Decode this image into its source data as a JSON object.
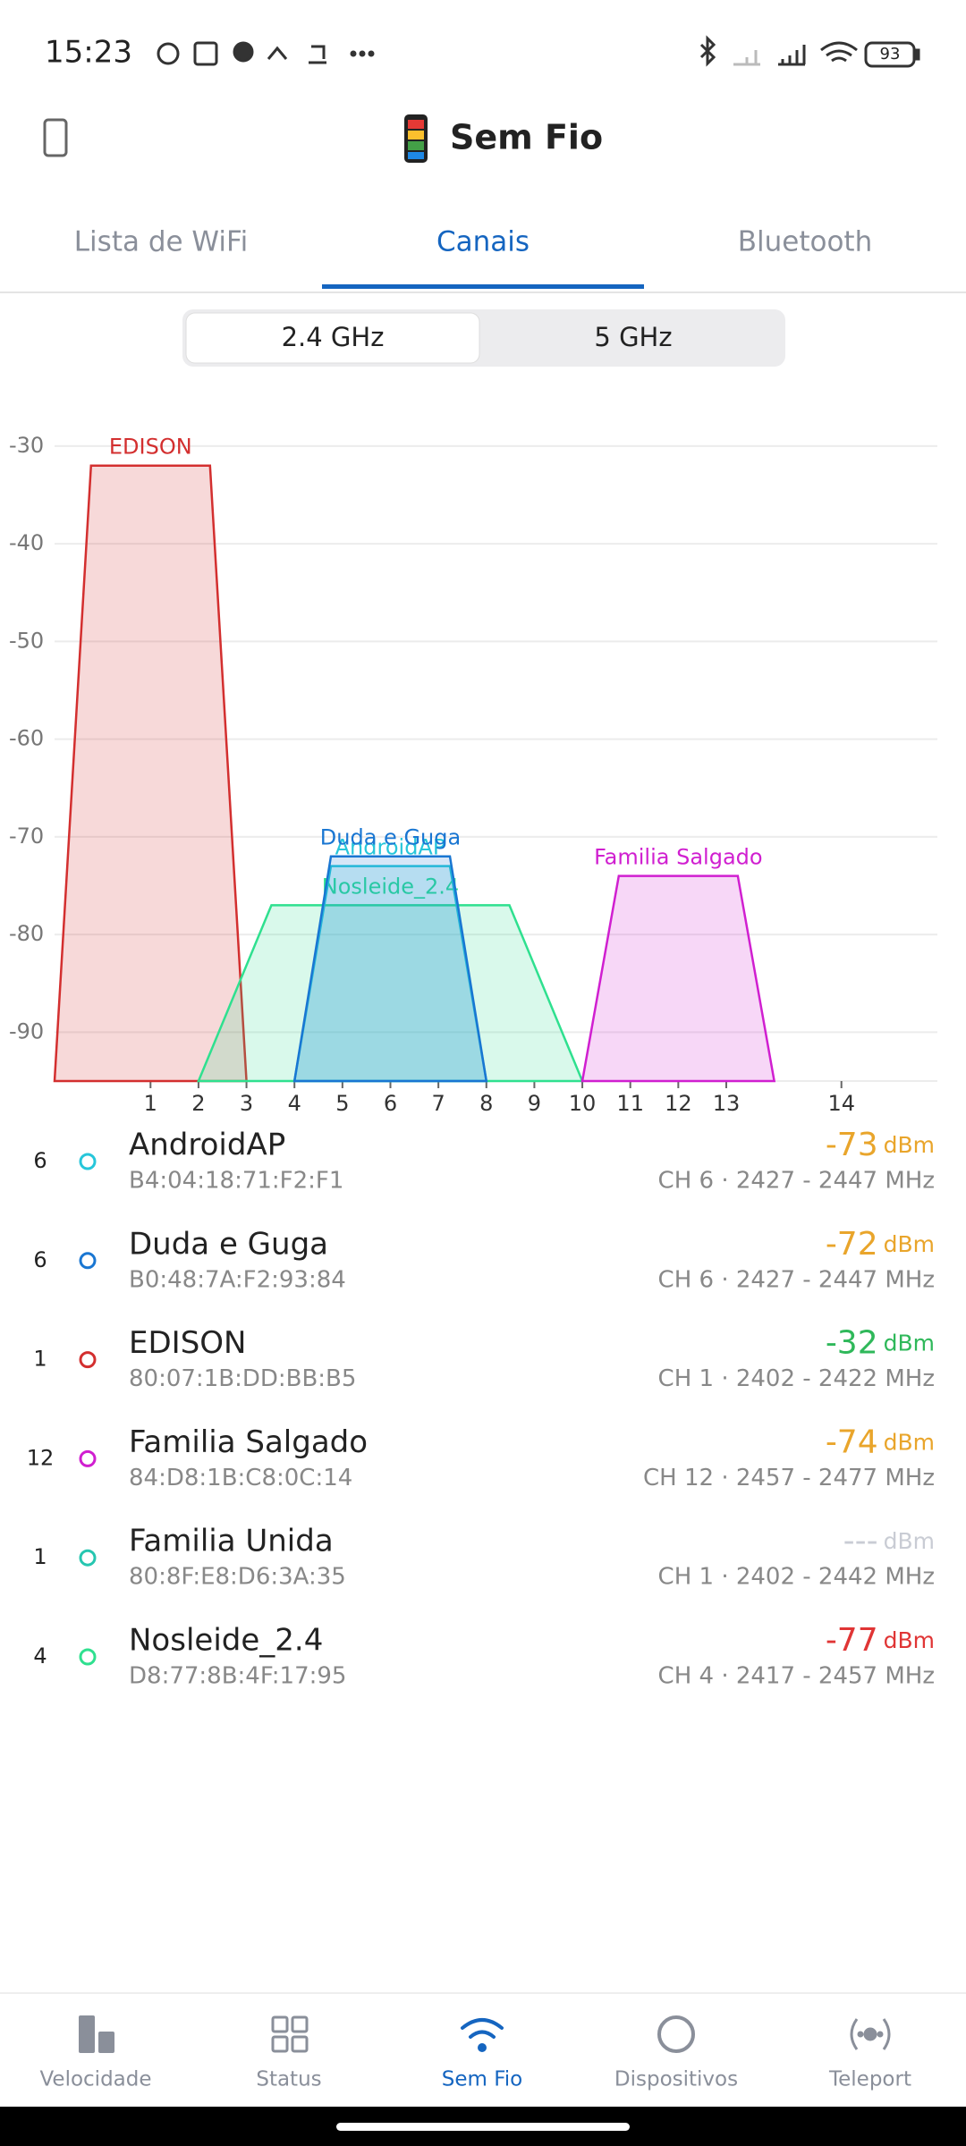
{
  "status_bar": {
    "time": "15:23",
    "battery": "93"
  },
  "header": {
    "title": "Sem Fio"
  },
  "tabs": [
    "Lista de WiFi",
    "Canais",
    "Bluetooth"
  ],
  "band_toggle": [
    "2.4 GHz",
    "5 GHz"
  ],
  "chart_data": {
    "type": "channel",
    "series": [
      {
        "name": "EDISON",
        "color": "#d32f2f",
        "value": -32,
        "range": [
          2402,
          2422
        ]
      },
      {
        "name": "Nosleide_2.4",
        "color": "#2fe08f",
        "value": -77,
        "range": [
          2417,
          2457
        ]
      },
      {
        "name": "AndroidAP",
        "color": "#26c6da",
        "value": -73,
        "range": [
          2427,
          2447
        ]
      },
      {
        "name": "Duda e Guga",
        "color": "#1976d2",
        "value": -72,
        "range": [
          2427,
          2447
        ]
      },
      {
        "name": "Familia Salgado",
        "color": "#d01fd0",
        "value": -74,
        "range": [
          2457,
          2477
        ]
      }
    ],
    "xlim": [
      2402,
      2494
    ],
    "xticks": [
      {
        "value": 2412,
        "label": "1"
      },
      {
        "value": 2417,
        "label": "2"
      },
      {
        "value": 2422,
        "label": "3"
      },
      {
        "value": 2427,
        "label": "4"
      },
      {
        "value": 2432,
        "label": "5"
      },
      {
        "value": 2437,
        "label": "6"
      },
      {
        "value": 2442,
        "label": "7"
      },
      {
        "value": 2447,
        "label": "8"
      },
      {
        "value": 2452,
        "label": "9"
      },
      {
        "value": 2457,
        "label": "10"
      },
      {
        "value": 2462,
        "label": "11"
      },
      {
        "value": 2467,
        "label": "12"
      },
      {
        "value": 2472,
        "label": "13"
      },
      {
        "value": 2484,
        "label": "14"
      }
    ],
    "ylim": [
      -95,
      -28
    ],
    "yticks": [
      -30,
      -40,
      -50,
      -60,
      -70,
      -80,
      -90
    ],
    "grid": true
  },
  "networks": [
    {
      "channel": 6,
      "name": "AndroidAP",
      "mac": "B4:04:18:71:F2:F1",
      "signal": -73,
      "unit": "dBm",
      "info": "CH 6 · 2427 - 2447 MHz",
      "color": "#26c6da",
      "signal_color": "#e9a52b"
    },
    {
      "channel": 6,
      "name": "Duda e Guga",
      "mac": "B0:48:7A:F2:93:84",
      "signal": -72,
      "unit": "dBm",
      "info": "CH 6 · 2427 - 2447 MHz",
      "color": "#1976d2",
      "signal_color": "#e9a52b"
    },
    {
      "channel": 1,
      "name": "EDISON",
      "mac": "80:07:1B:DD:BB:B5",
      "signal": -32,
      "unit": "dBm",
      "info": "CH 1 · 2402 - 2422 MHz",
      "color": "#d32f2f",
      "signal_color": "#2fb85a"
    },
    {
      "channel": 12,
      "name": "Familia Salgado",
      "mac": "84:D8:1B:C8:0C:14",
      "signal": -74,
      "unit": "dBm",
      "info": "CH 12 · 2457 - 2477 MHz",
      "color": "#d01fd0",
      "signal_color": "#e9a52b"
    },
    {
      "channel": 1,
      "name": "Familia Unida",
      "mac": "80:8F:E8:D6:3A:35",
      "signal": "---",
      "unit": "dBm",
      "info": "CH 1 · 2402 - 2442 MHz",
      "color": "#26c6b0",
      "signal_color": "#c9ccd4"
    },
    {
      "channel": 4,
      "name": "Nosleide_2.4",
      "mac": "D8:77:8B:4F:17:95",
      "signal": -77,
      "unit": "dBm",
      "info": "CH 4 · 2417 - 2457 MHz",
      "color": "#2fe08f",
      "signal_color": "#e03535"
    }
  ],
  "nav": [
    "Velocidade",
    "Status",
    "Sem Fio",
    "Dispositivos",
    "Teleport"
  ]
}
